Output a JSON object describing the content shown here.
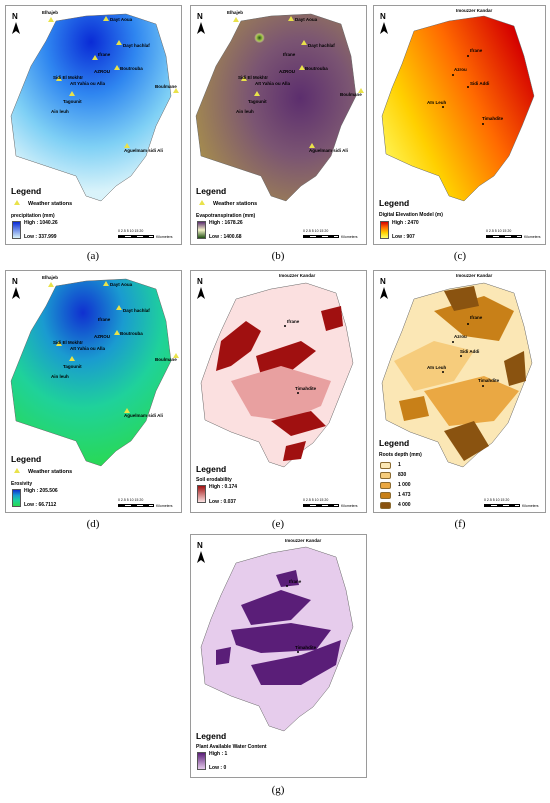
{
  "panels": {
    "a": {
      "caption": "(a)",
      "legend": "Legend",
      "stations": "Weather stations",
      "variable": "precipitation (mm)",
      "high": "High : 1040.26",
      "low": "Low : 337.999",
      "towns": [
        "Elhajeb",
        "Dayt Aoua",
        "Dayt hachlaf",
        "Ifrane",
        "AZROU",
        "Boutrouba",
        "Sidi El Mokhtr",
        "Aït Yahia ou Alla",
        "Tagounit",
        "Ain leuh",
        "Boulmane",
        "Aguelmam sidi Ali"
      ]
    },
    "b": {
      "caption": "(b)",
      "legend": "Legend",
      "stations": "Weather stations",
      "variable": "Evapotranspiration (mm)",
      "high": "High : 1678.26",
      "low": "Low : 1400.68",
      "towns": [
        "Elhajeb",
        "Dayt Aoua",
        "Dayt hachlaf",
        "Ifrane",
        "AZROU",
        "Boutrouba",
        "Sidi El Mokhtr",
        "Aït Yahia ou Alla",
        "Tagounit",
        "Ain leuh",
        "Boulmane",
        "Aguelmam sidi Ali"
      ]
    },
    "c": {
      "caption": "(c)",
      "legend": "Legend",
      "variable": "Digital Elevation Model (m)",
      "high": "High : 2470",
      "low": "Low : 907",
      "towns": [
        "Imouzzer Kandar",
        "Ifrane",
        "Azrou",
        "Sidi Addi",
        "Aïn Leuh",
        "Timahdite"
      ]
    },
    "d": {
      "caption": "(d)",
      "legend": "Legend",
      "stations": "Weather stations",
      "variable": "Erosivity",
      "high": "High : 205.506",
      "low": "Low : 66.7112",
      "towns": [
        "Elhajeb",
        "Dayt Aoua",
        "Dayt hachlaf",
        "Ifrane",
        "AZROU",
        "Boutrouba",
        "Sidi El Mokhtr",
        "Aït Yahia ou Alla",
        "Tagounit",
        "Ain leuh",
        "Boulmane",
        "Aguelmam sidi Ali"
      ]
    },
    "e": {
      "caption": "(e)",
      "legend": "Legend",
      "variable": "Soil erodability",
      "high": "High : 0.174",
      "low": "Low : 0.037",
      "towns": [
        "Imouzzer Kandar",
        "Ifrane",
        "Timahdite"
      ]
    },
    "f": {
      "caption": "(f)",
      "legend": "Legend",
      "variable": "Roots depth (mm)",
      "classes": [
        "1",
        "830",
        "1 000",
        "1 473",
        "4 000"
      ],
      "towns": [
        "Imouzzer Kandar",
        "Ifrane",
        "Azrou",
        "Sidi Addi",
        "Aïn Leuh",
        "Timahdite"
      ]
    },
    "g": {
      "caption": "(g)",
      "legend": "Legend",
      "variable": "Plant Available Water Content",
      "high": "High : 1",
      "low": "Low : 0",
      "towns": [
        "Imouzzer Kandar",
        "Ifrane",
        "Timahdite"
      ]
    }
  },
  "north_label": "N",
  "scale": {
    "ticks": "0  2.5  5   10   15   20",
    "unit": "Kilometers"
  },
  "colors": {
    "precip": [
      "#0a2bd6",
      "#2f86f0",
      "#7fd0f5",
      "#d9f3fa"
    ],
    "evapo": [
      "#1f4f12",
      "#a8c94a",
      "#f4f4c8",
      "#7e6a3a",
      "#5c2e6e"
    ],
    "dem": [
      "#d40000",
      "#ff6a00",
      "#ffd000",
      "#ffff6e"
    ],
    "erosivity": [
      "#1030d0",
      "#1a9bd0",
      "#1fd29a",
      "#2ad94f"
    ],
    "erodability": [
      "#a01010",
      "#e8a0a0",
      "#fbe0e0"
    ],
    "roots": [
      "#fbe7b5",
      "#f6cc7c",
      "#eaa843",
      "#c88018",
      "#8a5310"
    ],
    "pawc": [
      "#5a1e78",
      "#e6ccec"
    ],
    "station": "#e9e24a"
  }
}
